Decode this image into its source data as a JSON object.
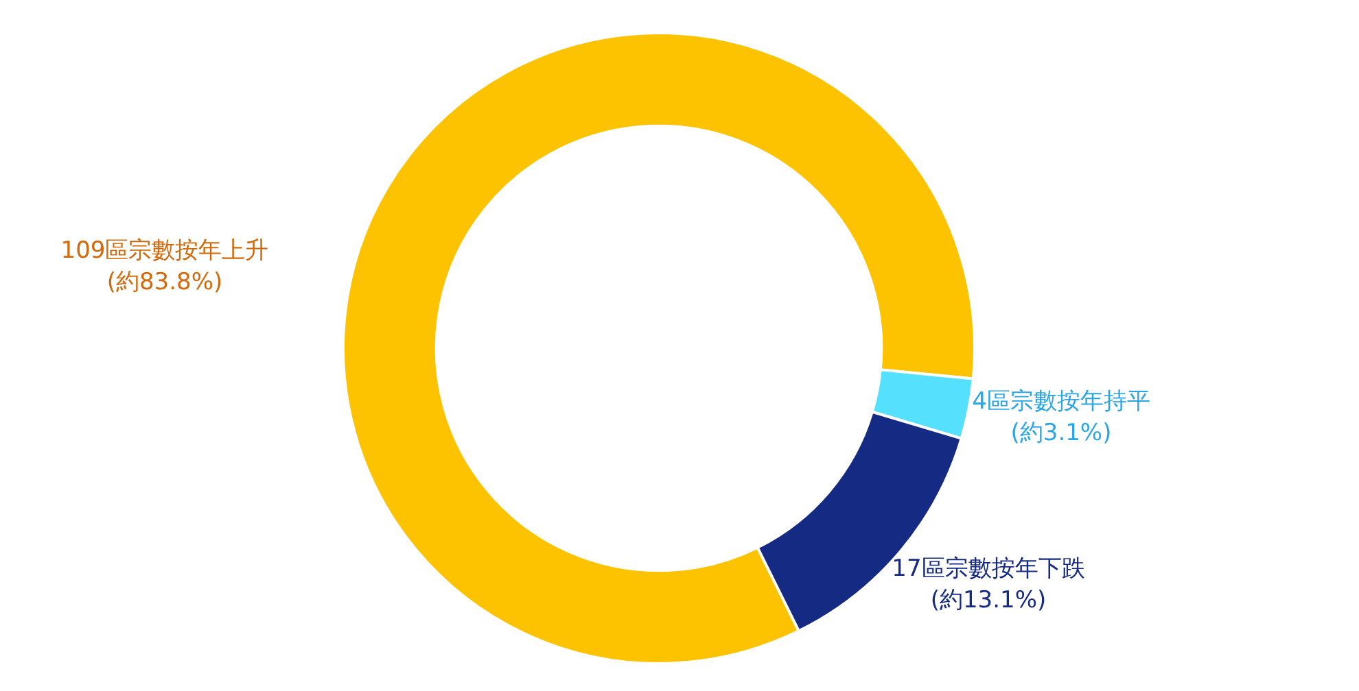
{
  "chart_data": {
    "type": "donut",
    "categories": [
      "109區宗數按年上升",
      "4區宗數按年持平",
      "17區宗數按年下跌"
    ],
    "values": [
      109,
      4,
      17
    ],
    "value_labels": [
      "(約83.8%)",
      "(約3.1%)",
      "(約13.1%)"
    ],
    "colors": [
      "#fdc300",
      "#55e1fd",
      "#152a82"
    ]
  }
}
